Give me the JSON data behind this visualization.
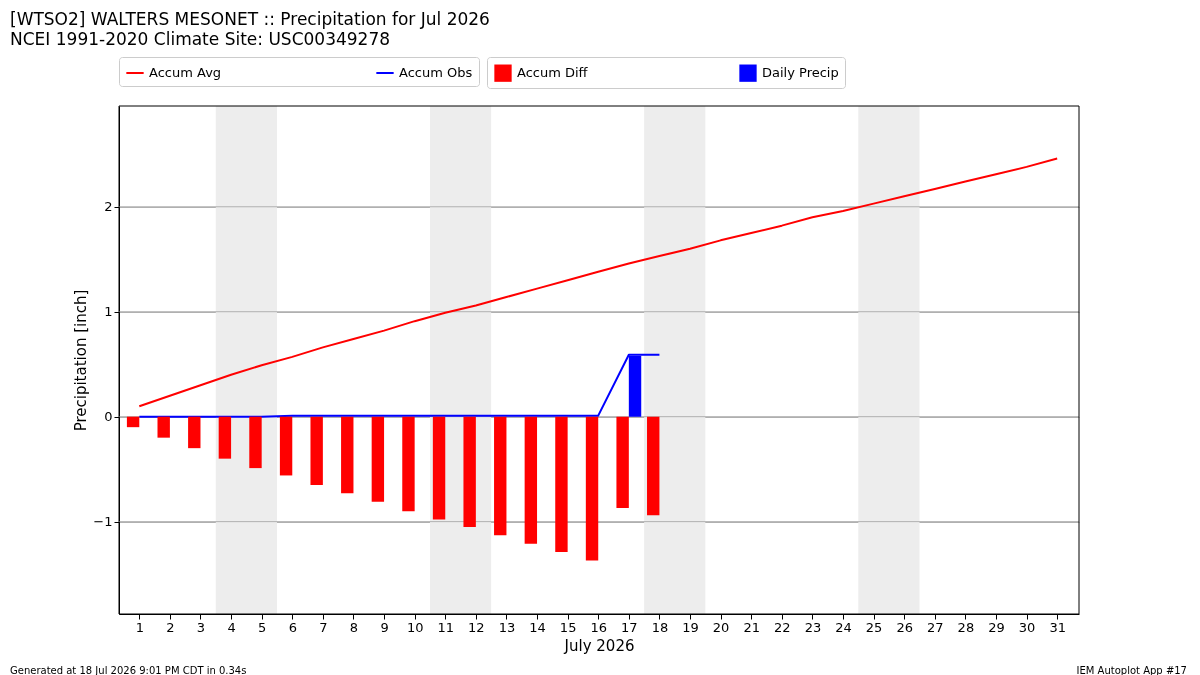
{
  "chart_data": {
    "type": "line",
    "title": "[WTSO2] WALTERS MESONET :: Precipitation for Jul 2026",
    "subtitle": "NCEI 1991-2020 Climate Site: USC00349278",
    "xlabel": "July 2026",
    "ylabel": "Precipitation [inch]",
    "x": [
      1,
      2,
      3,
      4,
      5,
      6,
      7,
      8,
      9,
      10,
      11,
      12,
      13,
      14,
      15,
      16,
      17,
      18,
      19,
      20,
      21,
      22,
      23,
      24,
      25,
      26,
      27,
      28,
      29,
      30,
      31
    ],
    "series": [
      {
        "name": "Accum Avg",
        "color": "#ff0000",
        "values": [
          0.1,
          0.2,
          0.3,
          0.4,
          0.49,
          0.57,
          0.66,
          0.74,
          0.82,
          0.91,
          0.99,
          1.06,
          1.14,
          1.22,
          1.3,
          1.38,
          1.46,
          1.53,
          1.6,
          1.68,
          1.75,
          1.82,
          1.9,
          1.96,
          2.03,
          2.1,
          2.17,
          2.24,
          2.31,
          2.38,
          2.46
        ]
      },
      {
        "name": "Accum Obs",
        "color": "#0000ff",
        "values": [
          0,
          0,
          0,
          0,
          0,
          0.01,
          0.01,
          0.01,
          0.01,
          0.01,
          0.01,
          0.01,
          0.01,
          0.01,
          0.01,
          0.01,
          0.59,
          0.59,
          null,
          null,
          null,
          null,
          null,
          null,
          null,
          null,
          null,
          null,
          null,
          null,
          null
        ]
      },
      {
        "name": "Accum Diff",
        "type": "bar",
        "color": "#ff0000",
        "values": [
          -0.1,
          -0.2,
          -0.3,
          -0.4,
          -0.49,
          -0.56,
          -0.65,
          -0.73,
          -0.81,
          -0.9,
          -0.98,
          -1.05,
          -1.13,
          -1.21,
          -1.29,
          -1.37,
          -0.87,
          -0.94,
          null,
          null,
          null,
          null,
          null,
          null,
          null,
          null,
          null,
          null,
          null,
          null,
          null
        ]
      },
      {
        "name": "Daily Precip",
        "type": "bar",
        "color": "#0000ff",
        "values": [
          null,
          null,
          null,
          null,
          null,
          null,
          null,
          null,
          null,
          null,
          null,
          null,
          null,
          null,
          null,
          null,
          0.58,
          null,
          null,
          null,
          null,
          null,
          null,
          null,
          null,
          null,
          null,
          null,
          null,
          null,
          null
        ]
      }
    ],
    "xlim": [
      0.5,
      31.55
    ],
    "xticks": [
      1,
      2,
      3,
      4,
      5,
      6,
      7,
      8,
      9,
      10,
      11,
      12,
      13,
      14,
      15,
      16,
      17,
      18,
      19,
      20,
      21,
      22,
      23,
      24,
      25,
      26,
      27,
      28,
      29,
      30,
      31
    ],
    "ylim": [
      -1.88,
      2.96
    ],
    "yticks": [
      {
        "value": -1,
        "label": "−1"
      },
      {
        "value": 0,
        "label": "0"
      },
      {
        "value": 1,
        "label": "1"
      },
      {
        "value": 2,
        "label": "2"
      }
    ],
    "bands": [
      {
        "axis": "x",
        "from": 3.5,
        "to": 5.5,
        "color": "#ededed"
      },
      {
        "axis": "x",
        "from": 10.5,
        "to": 12.5,
        "color": "#ededed"
      },
      {
        "axis": "x",
        "from": 17.5,
        "to": 19.5,
        "color": "#ededed"
      },
      {
        "axis": "x",
        "from": 24.5,
        "to": 26.5,
        "color": "#ededed"
      }
    ],
    "grid": "y",
    "legend": "top",
    "annotations": [
      "Generated at 18 Jul 2026 9:01 PM CDT in 0.34s",
      "IEM Autoplot App #17"
    ]
  }
}
